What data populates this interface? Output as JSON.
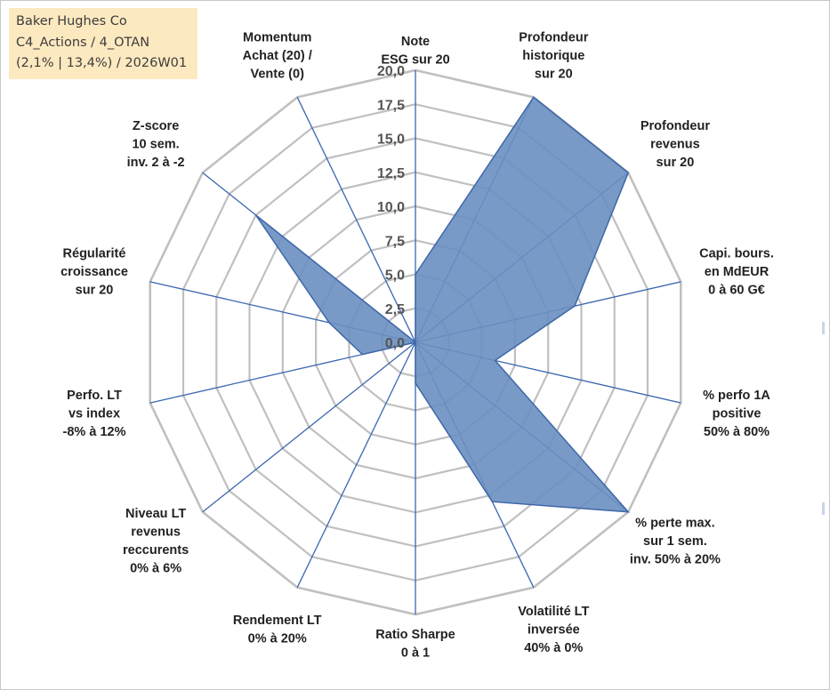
{
  "info": {
    "line1": "Baker Hughes Co",
    "line2": "C4_Actions / 4_OTAN",
    "line3": "(2,1% | 13,4%) / 2026W01"
  },
  "colors": {
    "grid": "#c0c0c0",
    "spoke": "#3a66b0",
    "fill": "#6a8fc0",
    "stroke": "#3d67a8"
  },
  "chart_data": {
    "type": "radar",
    "title": "",
    "rmin": 0,
    "rmax": 20,
    "step": 2.5,
    "tick_labels": [
      "0,0",
      "2,5",
      "5,0",
      "7,5",
      "10,0",
      "12,5",
      "15,0",
      "17,5",
      "20,0"
    ],
    "axes": [
      {
        "lines": [
          "Note",
          "ESG sur 20"
        ]
      },
      {
        "lines": [
          "Profondeur",
          "historique",
          "sur 20"
        ]
      },
      {
        "lines": [
          "Profondeur",
          "revenus",
          "sur 20"
        ]
      },
      {
        "lines": [
          "Capi. bours.",
          "en MdEUR",
          "0 à 60 G€"
        ]
      },
      {
        "lines": [
          "% perfo 1A",
          "positive",
          "50% à 80%"
        ]
      },
      {
        "lines": [
          "% perte max.",
          "sur 1 sem.",
          "inv. 50% à 20%"
        ]
      },
      {
        "lines": [
          "Volatilité LT",
          "inversée",
          "40% à 0%"
        ]
      },
      {
        "lines": [
          "Ratio Sharpe",
          "0 à 1"
        ]
      },
      {
        "lines": [
          "Rendement LT",
          "0% à 20%"
        ]
      },
      {
        "lines": [
          "Niveau LT",
          "revenus",
          "reccurents",
          "0% à 6%"
        ]
      },
      {
        "lines": [
          "Perfo. LT",
          "vs index",
          "-8% à 12%"
        ]
      },
      {
        "lines": [
          "Régularité",
          "croissance",
          "sur 20"
        ]
      },
      {
        "lines": [
          "Z-score",
          "10 sem.",
          "inv. 2 à -2"
        ]
      },
      {
        "lines": [
          "Momentum",
          "Achat (20) /",
          "Vente (0)"
        ]
      }
    ],
    "series": [
      {
        "name": "Baker Hughes Co",
        "values": [
          5.0,
          20.0,
          20.0,
          12.0,
          6.0,
          20.0,
          13.0,
          3.0,
          0.0,
          0.0,
          4.0,
          6.5,
          15.0,
          0.0
        ]
      }
    ]
  }
}
